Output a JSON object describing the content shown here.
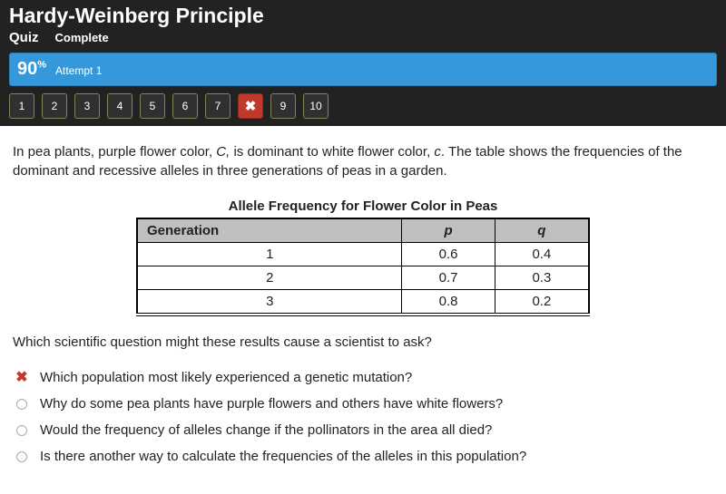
{
  "header": {
    "title": "Hardy-Weinberg Principle",
    "quiz_label": "Quiz",
    "status": "Complete"
  },
  "score": {
    "percent": "90",
    "percent_symbol": "%",
    "attempt_label": "Attempt 1",
    "bar_bg": "#3498db",
    "bar_border": "#2980b9"
  },
  "nav": {
    "items": [
      {
        "label": "1",
        "state": "normal"
      },
      {
        "label": "2",
        "state": "normal"
      },
      {
        "label": "3",
        "state": "normal"
      },
      {
        "label": "4",
        "state": "normal"
      },
      {
        "label": "5",
        "state": "normal"
      },
      {
        "label": "6",
        "state": "normal"
      },
      {
        "label": "7",
        "state": "normal"
      },
      {
        "label": "✖",
        "state": "wrong"
      },
      {
        "label": "9",
        "state": "normal"
      },
      {
        "label": "10",
        "state": "normal"
      }
    ],
    "wrong_bg": "#c0392b"
  },
  "question": {
    "intro_html": "In pea plants, purple flower color, <em>C,</em> is dominant to white flower color, <em>c</em>. The table shows the frequencies of the dominant and recessive alleles in three generations of peas in a garden.",
    "followup": "Which scientific question might these results cause a scientist to ask?"
  },
  "table": {
    "title": "Allele Frequency for Flower Color in Peas",
    "header_bg": "#bfbfbf",
    "columns": {
      "gen": "Generation",
      "p_html": "<em>p</em>",
      "q_html": "<em>q</em>"
    },
    "rows": [
      {
        "gen": "1",
        "p": "0.6",
        "q": "0.4"
      },
      {
        "gen": "2",
        "p": "0.7",
        "q": "0.3"
      },
      {
        "gen": "3",
        "p": "0.8",
        "q": "0.2"
      }
    ]
  },
  "options": [
    {
      "marker": "wrong",
      "text": "Which population most likely experienced a genetic mutation?"
    },
    {
      "marker": "radio",
      "text": "Why do some pea plants have purple flowers and others have white flowers?"
    },
    {
      "marker": "radio",
      "text": "Would the frequency of alleles change if the pollinators in the area all died?"
    },
    {
      "marker": "radio",
      "text": "Is there another way to calculate the frequencies of the alleles in this population?"
    }
  ],
  "colors": {
    "header_bg": "#222222",
    "wrong_color": "#c0392b",
    "text": "#222222"
  }
}
